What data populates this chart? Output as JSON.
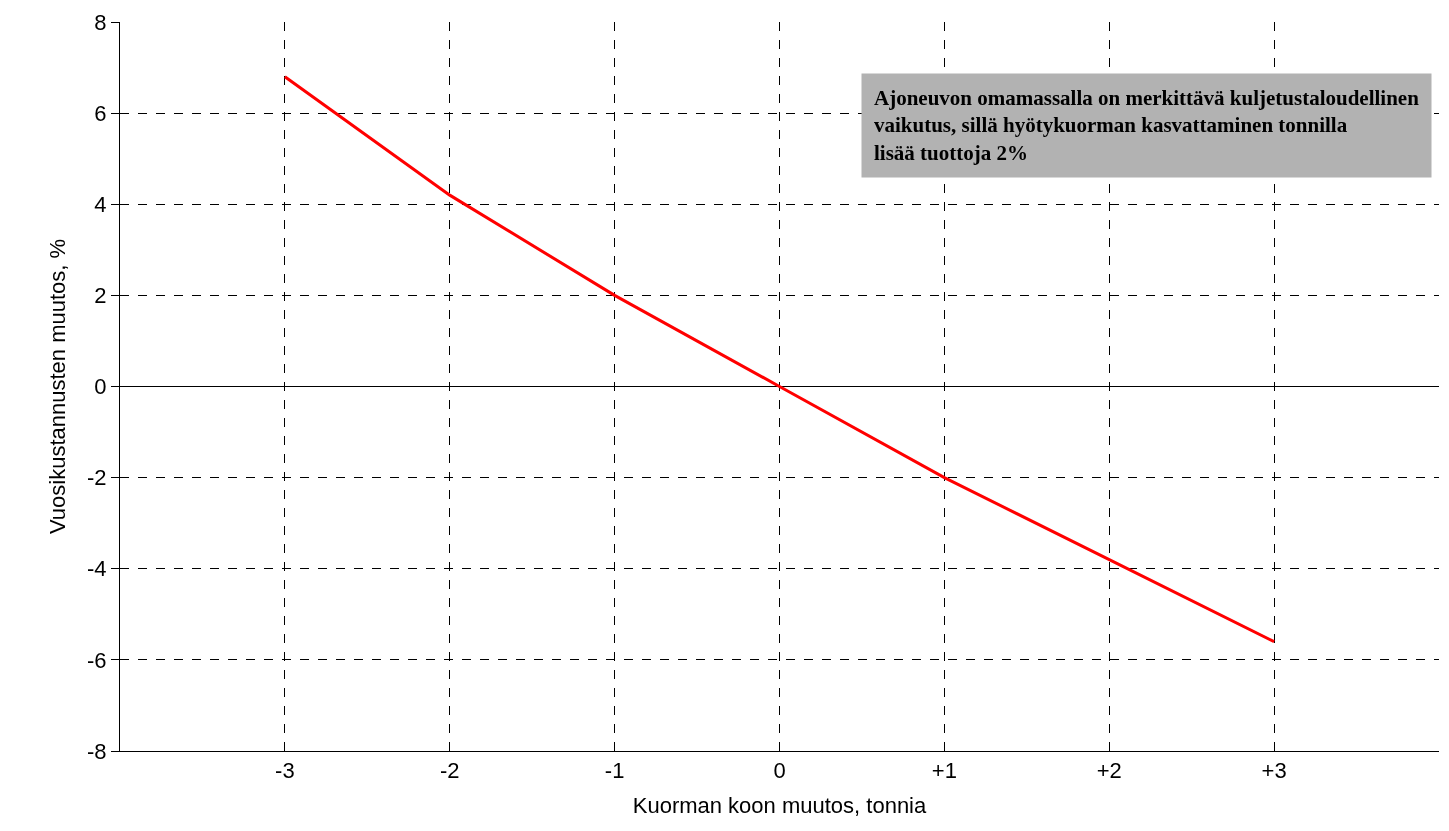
{
  "chart_data": {
    "type": "line",
    "xlabel": "Kuorman koon muutos, tonnia",
    "ylabel": "Vuosikustannusten muutos, %",
    "x": [
      -3,
      -2,
      -1,
      0,
      1,
      2,
      3
    ],
    "series": [
      {
        "color": "#ff0000",
        "values": [
          6.8,
          4.2,
          2.0,
          0,
          -2.0,
          -3.8,
          -5.6
        ]
      }
    ],
    "xlim": [
      -4,
      4
    ],
    "xticks": [
      -3,
      -2,
      -1,
      0,
      {
        "value": 1,
        "label": "+1"
      },
      {
        "value": 2,
        "label": "+2"
      },
      {
        "value": 3,
        "label": "+3"
      }
    ],
    "ylim": [
      -8,
      8
    ],
    "yticks": [
      -8,
      -6,
      -4,
      -2,
      0,
      2,
      4,
      6,
      8
    ],
    "grid": true,
    "marker": "none",
    "line_style": "solid",
    "annotations": [
      "Ajoneuvon omamassalla on merkittävä kuljetustaloudellinen\nvaikutus, sillä hyötykuorman kasvattaminen tonnilla\nlisää tuottoja 2%"
    ]
  }
}
